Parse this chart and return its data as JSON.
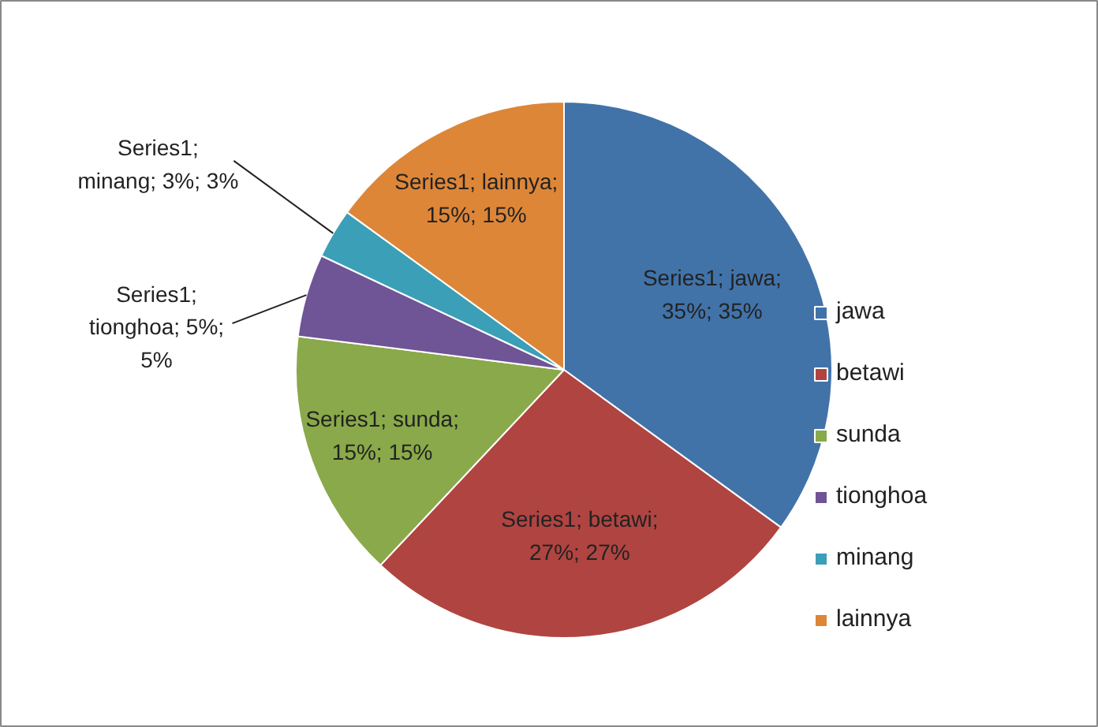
{
  "chart_data": {
    "type": "pie",
    "categories": [
      "jawa",
      "betawi",
      "sunda",
      "tionghoa",
      "minang",
      "lainnya"
    ],
    "values": [
      35,
      27,
      15,
      5,
      3,
      15
    ],
    "colors": [
      "#4173a9",
      "#b04441",
      "#8aa94a",
      "#6f5496",
      "#3b9fb7",
      "#dd8638"
    ],
    "value_labels": [
      "Series1; jawa;\n35%; 35%",
      "Series1; betawi;\n27%; 27%",
      "Series1; sunda;\n15%; 15%",
      "Series1;\ntionghoa; 5%;\n5%",
      "Series1;\nminang; 3%; 3%",
      "Series1; lainnya;\n15%; 15%"
    ],
    "legend": "right"
  }
}
